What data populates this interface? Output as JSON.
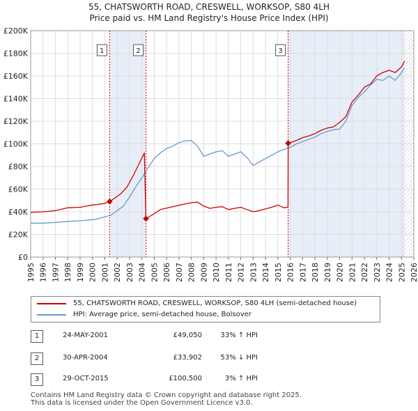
{
  "title_line1": "55, CHATSWORTH ROAD, CRESWELL, WORKSOP, S80 4LH",
  "title_line2": "Price paid vs. HM Land Registry's House Price Index (HPI)",
  "colors": {
    "property": "#cc0000",
    "hpi": "#6699cc",
    "shade": "#e8eef8",
    "grid": "#dddddd"
  },
  "chart_data": {
    "type": "line",
    "xlim": [
      1995,
      2026
    ],
    "ylim": [
      0,
      200000
    ],
    "y_ticks": [
      0,
      20000,
      40000,
      60000,
      80000,
      100000,
      120000,
      140000,
      160000,
      180000,
      200000
    ],
    "y_tick_labels": [
      "£0",
      "£20K",
      "£40K",
      "£60K",
      "£80K",
      "£100K",
      "£120K",
      "£140K",
      "£160K",
      "£180K",
      "£200K"
    ],
    "x_ticks": [
      1995,
      1996,
      1997,
      1998,
      1999,
      2000,
      2001,
      2002,
      2003,
      2004,
      2005,
      2006,
      2007,
      2008,
      2009,
      2010,
      2011,
      2012,
      2013,
      2014,
      2015,
      2016,
      2017,
      2018,
      2019,
      2020,
      2021,
      2022,
      2023,
      2024,
      2025,
      2026
    ],
    "series": [
      {
        "name": "55, CHATSWORTH ROAD, CRESWELL, WORKSOP, S80 4LH (semi-detached house)",
        "color": "#cc0000",
        "x": [
          1995.0,
          1996.0,
          1997.0,
          1998.0,
          1999.0,
          2000.0,
          2000.5,
          2001.0,
          2001.39,
          2001.8,
          2002.3,
          2002.8,
          2003.3,
          2003.8,
          2004.2,
          2004.32,
          2004.33,
          2004.8,
          2005.5,
          2006.5,
          2007.5,
          2008.0,
          2008.5,
          2009.0,
          2009.5,
          2010.0,
          2010.5,
          2011.0,
          2011.5,
          2012.0,
          2012.5,
          2013.0,
          2013.5,
          2014.0,
          2014.5,
          2015.0,
          2015.5,
          2015.82,
          2015.83,
          2016.5,
          2017.0,
          2017.5,
          2018.0,
          2018.5,
          2019.0,
          2019.5,
          2020.0,
          2020.5,
          2021.0,
          2021.5,
          2022.0,
          2022.5,
          2023.0,
          2023.5,
          2024.0,
          2024.5,
          2025.0,
          2025.25
        ],
        "values": [
          39500,
          40000,
          41000,
          43500,
          44000,
          46000,
          46500,
          47500,
          49050,
          52000,
          56000,
          62000,
          72000,
          83000,
          92000,
          35000,
          33902,
          37000,
          42000,
          44500,
          47000,
          48000,
          48500,
          45000,
          43000,
          44000,
          44500,
          42000,
          43000,
          44000,
          42000,
          40000,
          41000,
          42500,
          44000,
          46000,
          43500,
          44000,
          100500,
          103000,
          105500,
          107000,
          109000,
          112000,
          114000,
          115000,
          119000,
          124000,
          137000,
          143000,
          150000,
          153000,
          160000,
          163000,
          165000,
          163000,
          168000,
          173000
        ]
      },
      {
        "name": "HPI: Average price, semi-detached house, Bolsover",
        "color": "#6699cc",
        "x": [
          1995.0,
          1996.0,
          1997.0,
          1998.0,
          1999.0,
          2000.0,
          2000.5,
          2001.0,
          2001.5,
          2002.0,
          2002.5,
          2003.0,
          2003.5,
          2004.0,
          2004.5,
          2005.0,
          2005.5,
          2006.0,
          2006.5,
          2007.0,
          2007.5,
          2008.0,
          2008.5,
          2009.0,
          2009.5,
          2010.0,
          2010.5,
          2011.0,
          2011.5,
          2012.0,
          2012.5,
          2013.0,
          2013.5,
          2014.0,
          2014.5,
          2015.0,
          2015.5,
          2016.0,
          2016.5,
          2017.0,
          2017.5,
          2018.0,
          2018.5,
          2019.0,
          2019.5,
          2020.0,
          2020.5,
          2021.0,
          2021.5,
          2022.0,
          2022.5,
          2023.0,
          2023.5,
          2024.0,
          2024.5,
          2025.0,
          2025.25
        ],
        "values": [
          30000,
          30000,
          30500,
          31500,
          32000,
          33000,
          34000,
          35500,
          37000,
          41000,
          45000,
          53000,
          62000,
          70000,
          79000,
          87000,
          92000,
          96000,
          98000,
          101000,
          102500,
          103000,
          98000,
          89000,
          91000,
          93000,
          94000,
          89000,
          91000,
          93000,
          88000,
          81000,
          84000,
          87000,
          90000,
          93000,
          95000,
          97000,
          100000,
          102000,
          104000,
          106000,
          109000,
          111000,
          112500,
          113000,
          120000,
          134000,
          141000,
          146000,
          152000,
          157000,
          156000,
          160000,
          156000,
          163000,
          167000
        ]
      }
    ],
    "transactions": [
      {
        "label": "1",
        "x": 2001.39,
        "price": 49050
      },
      {
        "label": "2",
        "x": 2004.33,
        "price": 33902
      },
      {
        "label": "3",
        "x": 2015.83,
        "price": 100500
      }
    ],
    "shaded_ranges": [
      [
        2001.39,
        2004.33
      ],
      [
        2015.83,
        2025.25
      ]
    ],
    "hatched_from": 2025.0
  },
  "legend": {
    "property_label": "55, CHATSWORTH ROAD, CRESWELL, WORKSOP, S80 4LH (semi-detached house)",
    "hpi_label": "HPI: Average price, semi-detached house, Bolsover"
  },
  "table": [
    {
      "num": "1",
      "date": "24-MAY-2001",
      "price": "£49,050",
      "hpi": "33% ↑ HPI"
    },
    {
      "num": "2",
      "date": "30-APR-2004",
      "price": "£33,902",
      "hpi": "53% ↓ HPI"
    },
    {
      "num": "3",
      "date": "29-OCT-2015",
      "price": "£100,500",
      "hpi": "3% ↑ HPI"
    }
  ],
  "footer_line1": "Contains HM Land Registry data © Crown copyright and database right 2025.",
  "footer_line2": "This data is licensed under the Open Government Licence v3.0."
}
